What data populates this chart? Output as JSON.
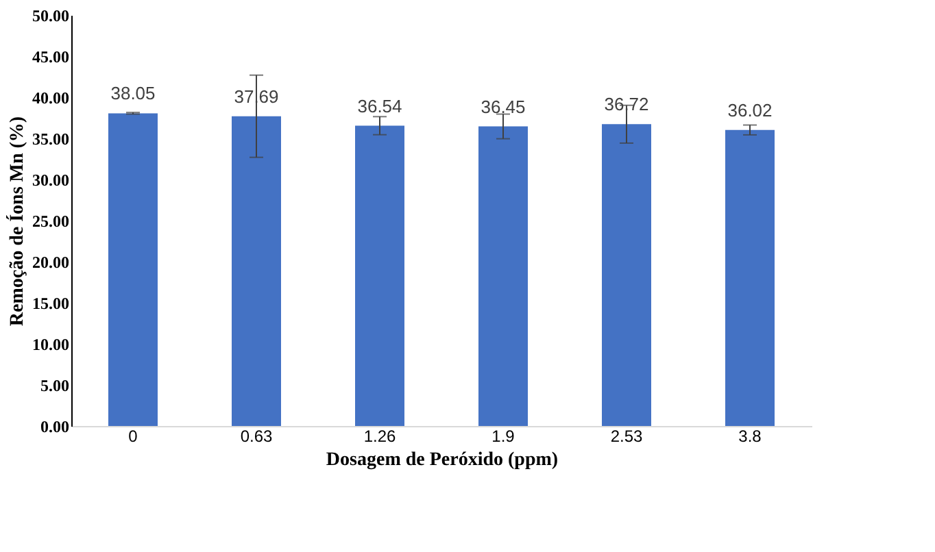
{
  "chart_data": {
    "type": "bar",
    "xlabel": "Dosagem de Peróxido (ppm)",
    "ylabel": "Remoção de Íons Mn (%)",
    "categories": [
      "0",
      "0.63",
      "1.26",
      "1.9",
      "2.53",
      "3.8"
    ],
    "values": [
      38.05,
      37.69,
      36.54,
      36.45,
      36.72,
      36.02
    ],
    "errors": [
      0.1,
      5.0,
      1.1,
      1.5,
      2.3,
      0.6
    ],
    "color": "#4472c4",
    "data_labels": true,
    "ylim": [
      0,
      50
    ],
    "yticks": [
      {
        "value": 0,
        "label": "0.00"
      },
      {
        "value": 5,
        "label": "5.00"
      },
      {
        "value": 10,
        "label": "10.00"
      },
      {
        "value": 15,
        "label": "15.00"
      },
      {
        "value": 20,
        "label": "20.00"
      },
      {
        "value": 25,
        "label": "25.00"
      },
      {
        "value": 30,
        "label": "30.00"
      },
      {
        "value": 35,
        "label": "35.00"
      },
      {
        "value": 40,
        "label": "40.00"
      },
      {
        "value": 45,
        "label": "45.00"
      },
      {
        "value": 50,
        "label": "50.00"
      }
    ],
    "grid": false
  }
}
